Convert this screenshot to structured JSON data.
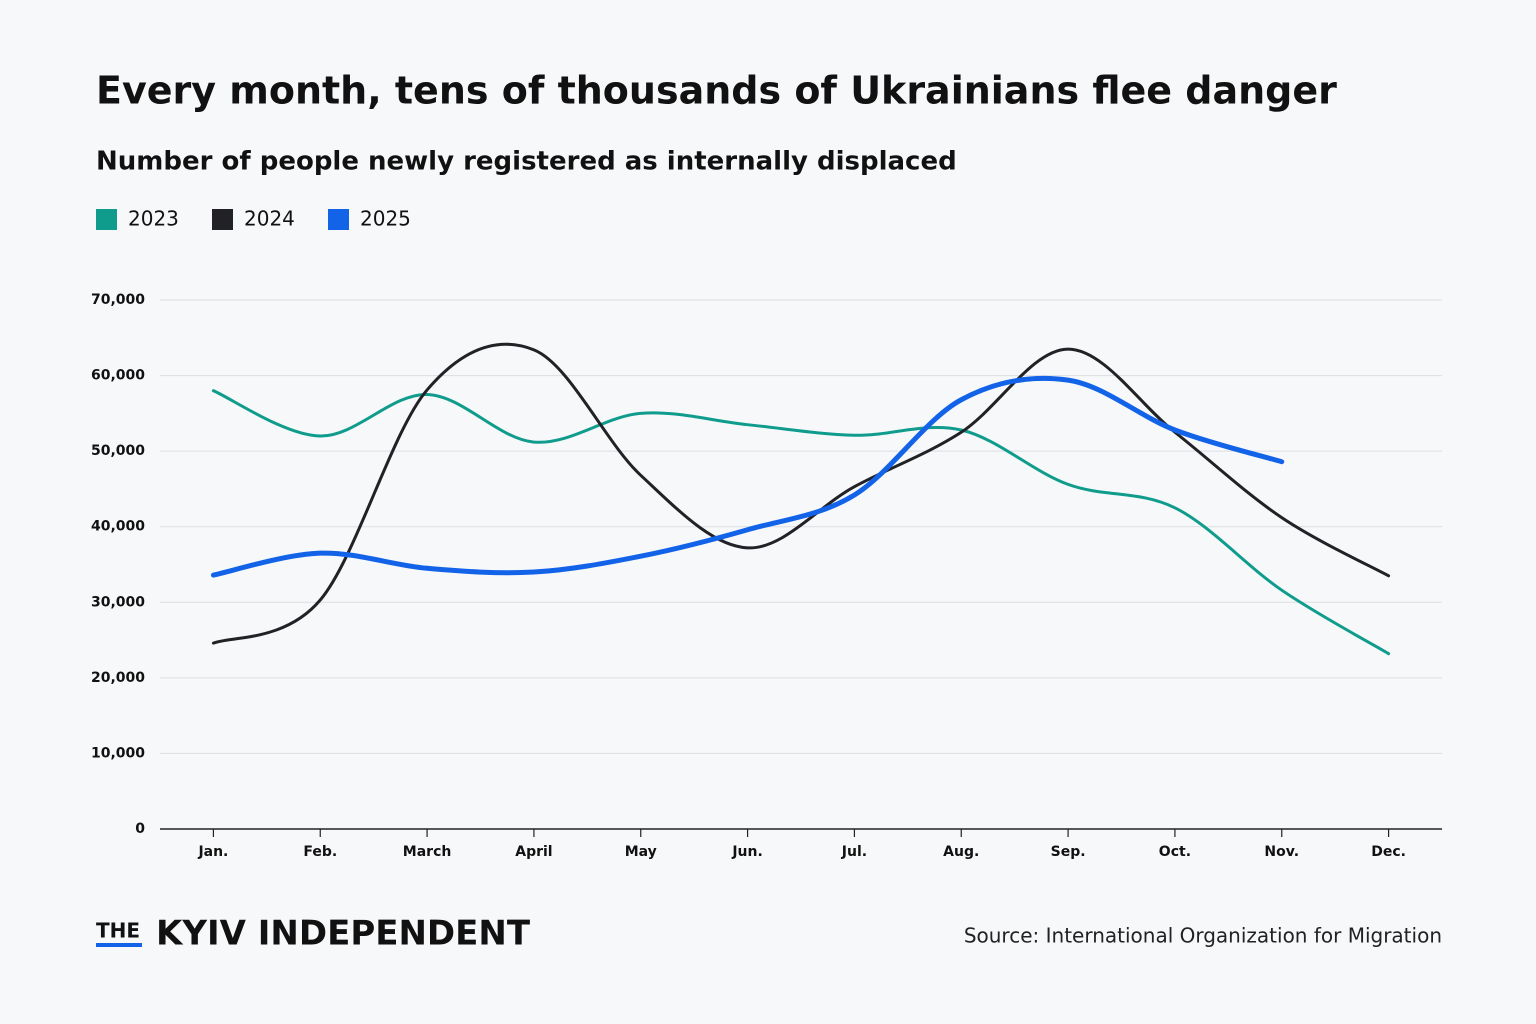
{
  "chart_data": {
    "type": "line",
    "title": "Every month, tens of thousands of Ukrainians flee danger",
    "subtitle": "Number of people newly registered as internally displaced",
    "categories": [
      "Jan.",
      "Feb.",
      "March",
      "April",
      "May",
      "Jun.",
      "Jul.",
      "Aug.",
      "Sep.",
      "Oct.",
      "Nov.",
      "Dec."
    ],
    "series": [
      {
        "name": "2023",
        "color": "#0f9c8c",
        "values": [
          58000,
          52000,
          57500,
          51200,
          55000,
          53500,
          52100,
          52800,
          45600,
          42500,
          31600,
          23200
        ]
      },
      {
        "name": "2024",
        "color": "#222226",
        "values": [
          24600,
          30300,
          58100,
          63400,
          46800,
          37200,
          45300,
          52500,
          63500,
          52500,
          41200,
          33500
        ]
      },
      {
        "name": "2025",
        "color": "#1363e8",
        "values": [
          33600,
          36500,
          34500,
          34000,
          36100,
          39600,
          44200,
          56800,
          59400,
          52800,
          48600,
          null
        ]
      }
    ],
    "ylim": [
      0,
      70000
    ],
    "yticks": [
      0,
      {
        "value": 10000,
        "label": "10,000"
      },
      {
        "value": 20000,
        "label": "20,000"
      },
      {
        "value": 30000,
        "label": "30,000"
      },
      {
        "value": 40000,
        "label": "40,000"
      },
      {
        "value": 50000,
        "label": "50,000"
      },
      {
        "value": 60000,
        "label": "60,000"
      },
      {
        "value": 70000,
        "label": "70,000"
      }
    ],
    "grid": true,
    "legend": "top-left",
    "brand_prefix": "THE",
    "brand": "KYIV INDEPENDENT",
    "source": "Source: International Organization for Migration"
  }
}
